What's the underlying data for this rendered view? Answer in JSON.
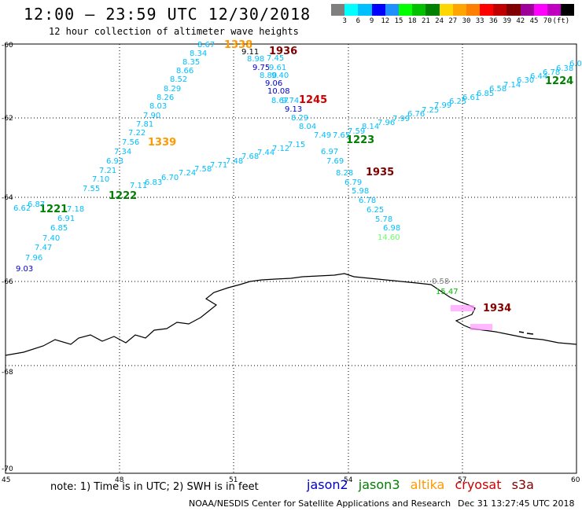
{
  "header": {
    "title": "12:00 – 23:59 UTC 12/30/2018",
    "subtitle": "12 hour collection of altimeter wave heights"
  },
  "color_scale": {
    "colors": [
      "#7f7f7f",
      "#00ffff",
      "#00bfff",
      "#0000ff",
      "#1e90ff",
      "#00ff00",
      "#00c000",
      "#008000",
      "#ffd700",
      "#ffa500",
      "#ff8000",
      "#ff0000",
      "#c00000",
      "#800000",
      "#a0009a",
      "#ff00ff",
      "#c000c0",
      "#000000"
    ],
    "labels": [
      "3",
      "6",
      "9",
      "12",
      "15",
      "18",
      "21",
      "24",
      "27",
      "30",
      "33",
      "36",
      "39",
      "42",
      "45",
      "70",
      "(ft)"
    ]
  },
  "axes": {
    "x_ticks": [
      "45",
      "48",
      "51",
      "54",
      "57",
      "60"
    ],
    "y_ticks": [
      "-60",
      "-62",
      "-64",
      "-66",
      "-68",
      "-70"
    ]
  },
  "satellites": {
    "jason2": {
      "label": "jason2",
      "color": "#0000cc"
    },
    "jason3": {
      "label": "jason3",
      "color": "#008000"
    },
    "altika": {
      "label": "altika",
      "color": "#ff9900"
    },
    "cryosat": {
      "label": "cryosat",
      "color": "#cc0000"
    },
    "s3a": {
      "label": "s3a",
      "color": "#800000"
    }
  },
  "pass_times": [
    {
      "text": "1338",
      "sat": "altika"
    },
    {
      "text": "1936",
      "sat": "s3a"
    },
    {
      "text": "1245",
      "sat": "cryosat"
    },
    {
      "text": "1339",
      "sat": "altika"
    },
    {
      "text": "1223",
      "sat": "jason3"
    },
    {
      "text": "1935",
      "sat": "s3a"
    },
    {
      "text": "1221",
      "sat": "jason3"
    },
    {
      "text": "1222",
      "sat": "jason3"
    },
    {
      "text": "1224",
      "sat": "jason3"
    },
    {
      "text": "1934",
      "sat": "s3a"
    }
  ],
  "swh_values": [
    {
      "v": "8.67",
      "c": "#00bfff"
    },
    {
      "v": "8.34",
      "c": "#00bfff"
    },
    {
      "v": "8.35",
      "c": "#00bfff"
    },
    {
      "v": "8.66",
      "c": "#00bfff"
    },
    {
      "v": "8.52",
      "c": "#00bfff"
    },
    {
      "v": "8.29",
      "c": "#00bfff"
    },
    {
      "v": "8.26",
      "c": "#00bfff"
    },
    {
      "v": "8.03",
      "c": "#00bfff"
    },
    {
      "v": "7.90",
      "c": "#00bfff"
    },
    {
      "v": "7.81",
      "c": "#00bfff"
    },
    {
      "v": "7.22",
      "c": "#00bfff"
    },
    {
      "v": "7.56",
      "c": "#00bfff"
    },
    {
      "v": "7.34",
      "c": "#00bfff"
    },
    {
      "v": "6.93",
      "c": "#00bfff"
    },
    {
      "v": "7.21",
      "c": "#00bfff"
    },
    {
      "v": "7.10",
      "c": "#00bfff"
    },
    {
      "v": "7.55",
      "c": "#00bfff"
    },
    {
      "v": "7.18",
      "c": "#00bfff"
    },
    {
      "v": "6.91",
      "c": "#00bfff"
    },
    {
      "v": "6.85",
      "c": "#00bfff"
    },
    {
      "v": "7.40",
      "c": "#00bfff"
    },
    {
      "v": "7.47",
      "c": "#00bfff"
    },
    {
      "v": "7.96",
      "c": "#00bfff"
    },
    {
      "v": "9.03",
      "c": "#0000cc"
    },
    {
      "v": "6.62",
      "c": "#00bfff"
    },
    {
      "v": "9.11",
      "c": "#000000"
    },
    {
      "v": "8.98",
      "c": "#00bfff"
    },
    {
      "v": "7.45",
      "c": "#00bfff"
    },
    {
      "v": "9.75",
      "c": "#0000cc"
    },
    {
      "v": "9.61",
      "c": "#00bfff"
    },
    {
      "v": "8.80",
      "c": "#00bfff"
    },
    {
      "v": "9.40",
      "c": "#00bfff"
    },
    {
      "v": "9.06",
      "c": "#0000cc"
    },
    {
      "v": "10.08",
      "c": "#0000cc"
    },
    {
      "v": "8.67",
      "c": "#00bfff"
    },
    {
      "v": "9.74",
      "c": "#00bfff"
    },
    {
      "v": "9.13",
      "c": "#0000cc"
    },
    {
      "v": "8.29",
      "c": "#00bfff"
    },
    {
      "v": "8.04",
      "c": "#00bfff"
    },
    {
      "v": "7.49",
      "c": "#00bfff"
    },
    {
      "v": "6.97",
      "c": "#00bfff"
    },
    {
      "v": "7.69",
      "c": "#00bfff"
    },
    {
      "v": "8.28",
      "c": "#00bfff"
    },
    {
      "v": "6.79",
      "c": "#00bfff"
    },
    {
      "v": "5.98",
      "c": "#00bfff"
    },
    {
      "v": "6.78",
      "c": "#00bfff"
    },
    {
      "v": "6.25",
      "c": "#00bfff"
    },
    {
      "v": "5.78",
      "c": "#00bfff"
    },
    {
      "v": "6.98",
      "c": "#00bfff"
    },
    {
      "v": "14.60",
      "c": "#66ff66"
    },
    {
      "v": "6.83",
      "c": "#00bfff"
    },
    {
      "v": "6.70",
      "c": "#00bfff"
    },
    {
      "v": "7.24",
      "c": "#00bfff"
    },
    {
      "v": "7.58",
      "c": "#00bfff"
    },
    {
      "v": "7.71",
      "c": "#00bfff"
    },
    {
      "v": "7.48",
      "c": "#00bfff"
    },
    {
      "v": "7.68",
      "c": "#00bfff"
    },
    {
      "v": "7.44",
      "c": "#00bfff"
    },
    {
      "v": "7.12",
      "c": "#00bfff"
    },
    {
      "v": "7.15",
      "c": "#00bfff"
    },
    {
      "v": "7.11",
      "c": "#00bfff"
    },
    {
      "v": "7.65",
      "c": "#00bfff"
    },
    {
      "v": "7.59",
      "c": "#00bfff"
    },
    {
      "v": "8.14",
      "c": "#00bfff"
    },
    {
      "v": "7.96",
      "c": "#00bfff"
    },
    {
      "v": "7.99",
      "c": "#00bfff"
    },
    {
      "v": "6.76",
      "c": "#00bfff"
    },
    {
      "v": "7.25",
      "c": "#00bfff"
    },
    {
      "v": "7.99",
      "c": "#00bfff"
    },
    {
      "v": "6.25",
      "c": "#00bfff"
    },
    {
      "v": "6.61",
      "c": "#00bfff"
    },
    {
      "v": "6.85",
      "c": "#00bfff"
    },
    {
      "v": "6.58",
      "c": "#00bfff"
    },
    {
      "v": "7.14",
      "c": "#00bfff"
    },
    {
      "v": "6.30",
      "c": "#00bfff"
    },
    {
      "v": "6.44",
      "c": "#00bfff"
    },
    {
      "v": "6.78",
      "c": "#00bfff"
    },
    {
      "v": "6.38",
      "c": "#00bfff"
    },
    {
      "v": "6.0",
      "c": "#00bfff"
    },
    {
      "v": "6.87",
      "c": "#00bfff"
    },
    {
      "v": "0.58",
      "c": "#7f7f7f"
    },
    {
      "v": "15.47",
      "c": "#00c000"
    }
  ],
  "footer": {
    "note": "note:  1) Time is in UTC;  2) SWH is in feet",
    "credit": "NOAA/NESDIS Center for Satellite Applications and Research",
    "timestamp": "Dec 31 13:27:45 UTC 2018"
  }
}
